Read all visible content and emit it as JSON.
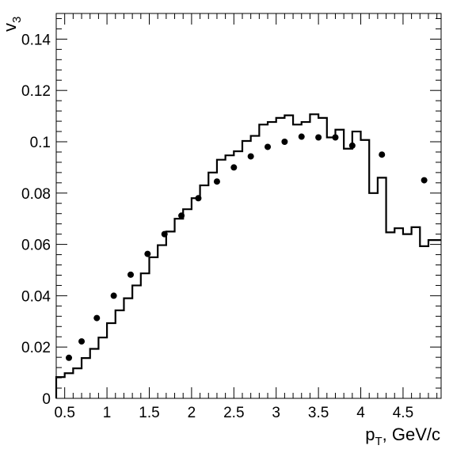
{
  "chart_data": {
    "type": "line",
    "title": "",
    "xlabel": "p_T, GeV/c",
    "ylabel": "v_3",
    "xlabel_main": "p",
    "xlabel_sub": "T",
    "xlabel_rest": ", GeV/c",
    "ylabel_main": "v",
    "ylabel_sub": "3",
    "xlim": [
      0.4,
      4.95
    ],
    "ylim": [
      0,
      0.15
    ],
    "grid": false,
    "x_ticks": [
      0.5,
      1,
      1.5,
      2,
      2.5,
      3,
      3.5,
      4,
      4.5
    ],
    "x_tick_labels": [
      "0.5",
      "1",
      "1.5",
      "2",
      "2.5",
      "3",
      "3.5",
      "4",
      "4.5"
    ],
    "y_ticks": [
      0,
      0.02,
      0.04,
      0.06,
      0.08,
      0.1,
      0.12,
      0.14
    ],
    "y_tick_labels": [
      "0",
      "0.02",
      "0.04",
      "0.06",
      "0.08",
      "0.1",
      "0.12",
      "0.14"
    ],
    "series": [
      {
        "style": "histogram-step",
        "color": "#000000",
        "bin_edges": [
          0.4,
          0.5,
          0.6,
          0.7,
          0.8,
          0.9,
          1.0,
          1.1,
          1.2,
          1.3,
          1.4,
          1.5,
          1.6,
          1.7,
          1.8,
          1.9,
          2.0,
          2.1,
          2.2,
          2.3,
          2.4,
          2.5,
          2.6,
          2.7,
          2.8,
          2.9,
          3.0,
          3.1,
          3.2,
          3.3,
          3.4,
          3.5,
          3.6,
          3.7,
          3.8,
          3.9,
          4.0,
          4.1,
          4.2,
          4.3,
          4.4,
          4.5,
          4.6,
          4.7,
          4.8,
          4.95
        ],
        "values": [
          0.0083,
          0.0098,
          0.0117,
          0.0157,
          0.0193,
          0.0237,
          0.0293,
          0.0343,
          0.039,
          0.044,
          0.0487,
          0.055,
          0.0597,
          0.065,
          0.07,
          0.0737,
          0.078,
          0.083,
          0.088,
          0.093,
          0.0947,
          0.0963,
          0.1003,
          0.1023,
          0.1067,
          0.1077,
          0.1093,
          0.1103,
          0.1067,
          0.1077,
          0.1107,
          0.1093,
          0.1017,
          0.1047,
          0.0973,
          0.104,
          0.1007,
          0.08,
          0.086,
          0.0647,
          0.0663,
          0.064,
          0.0667,
          0.0593,
          0.0617
        ]
      },
      {
        "style": "markers",
        "color": "#000000",
        "x": [
          0.55,
          0.7,
          0.88,
          1.08,
          1.28,
          1.48,
          1.68,
          1.88,
          2.08,
          2.3,
          2.5,
          2.7,
          2.9,
          3.1,
          3.3,
          3.5,
          3.7,
          3.9,
          4.25,
          4.75
        ],
        "y": [
          0.0158,
          0.0222,
          0.0313,
          0.04,
          0.0482,
          0.0563,
          0.064,
          0.0712,
          0.078,
          0.0845,
          0.09,
          0.0943,
          0.098,
          0.1,
          0.102,
          0.1017,
          0.1017,
          0.0985,
          0.095,
          0.085
        ]
      }
    ]
  }
}
